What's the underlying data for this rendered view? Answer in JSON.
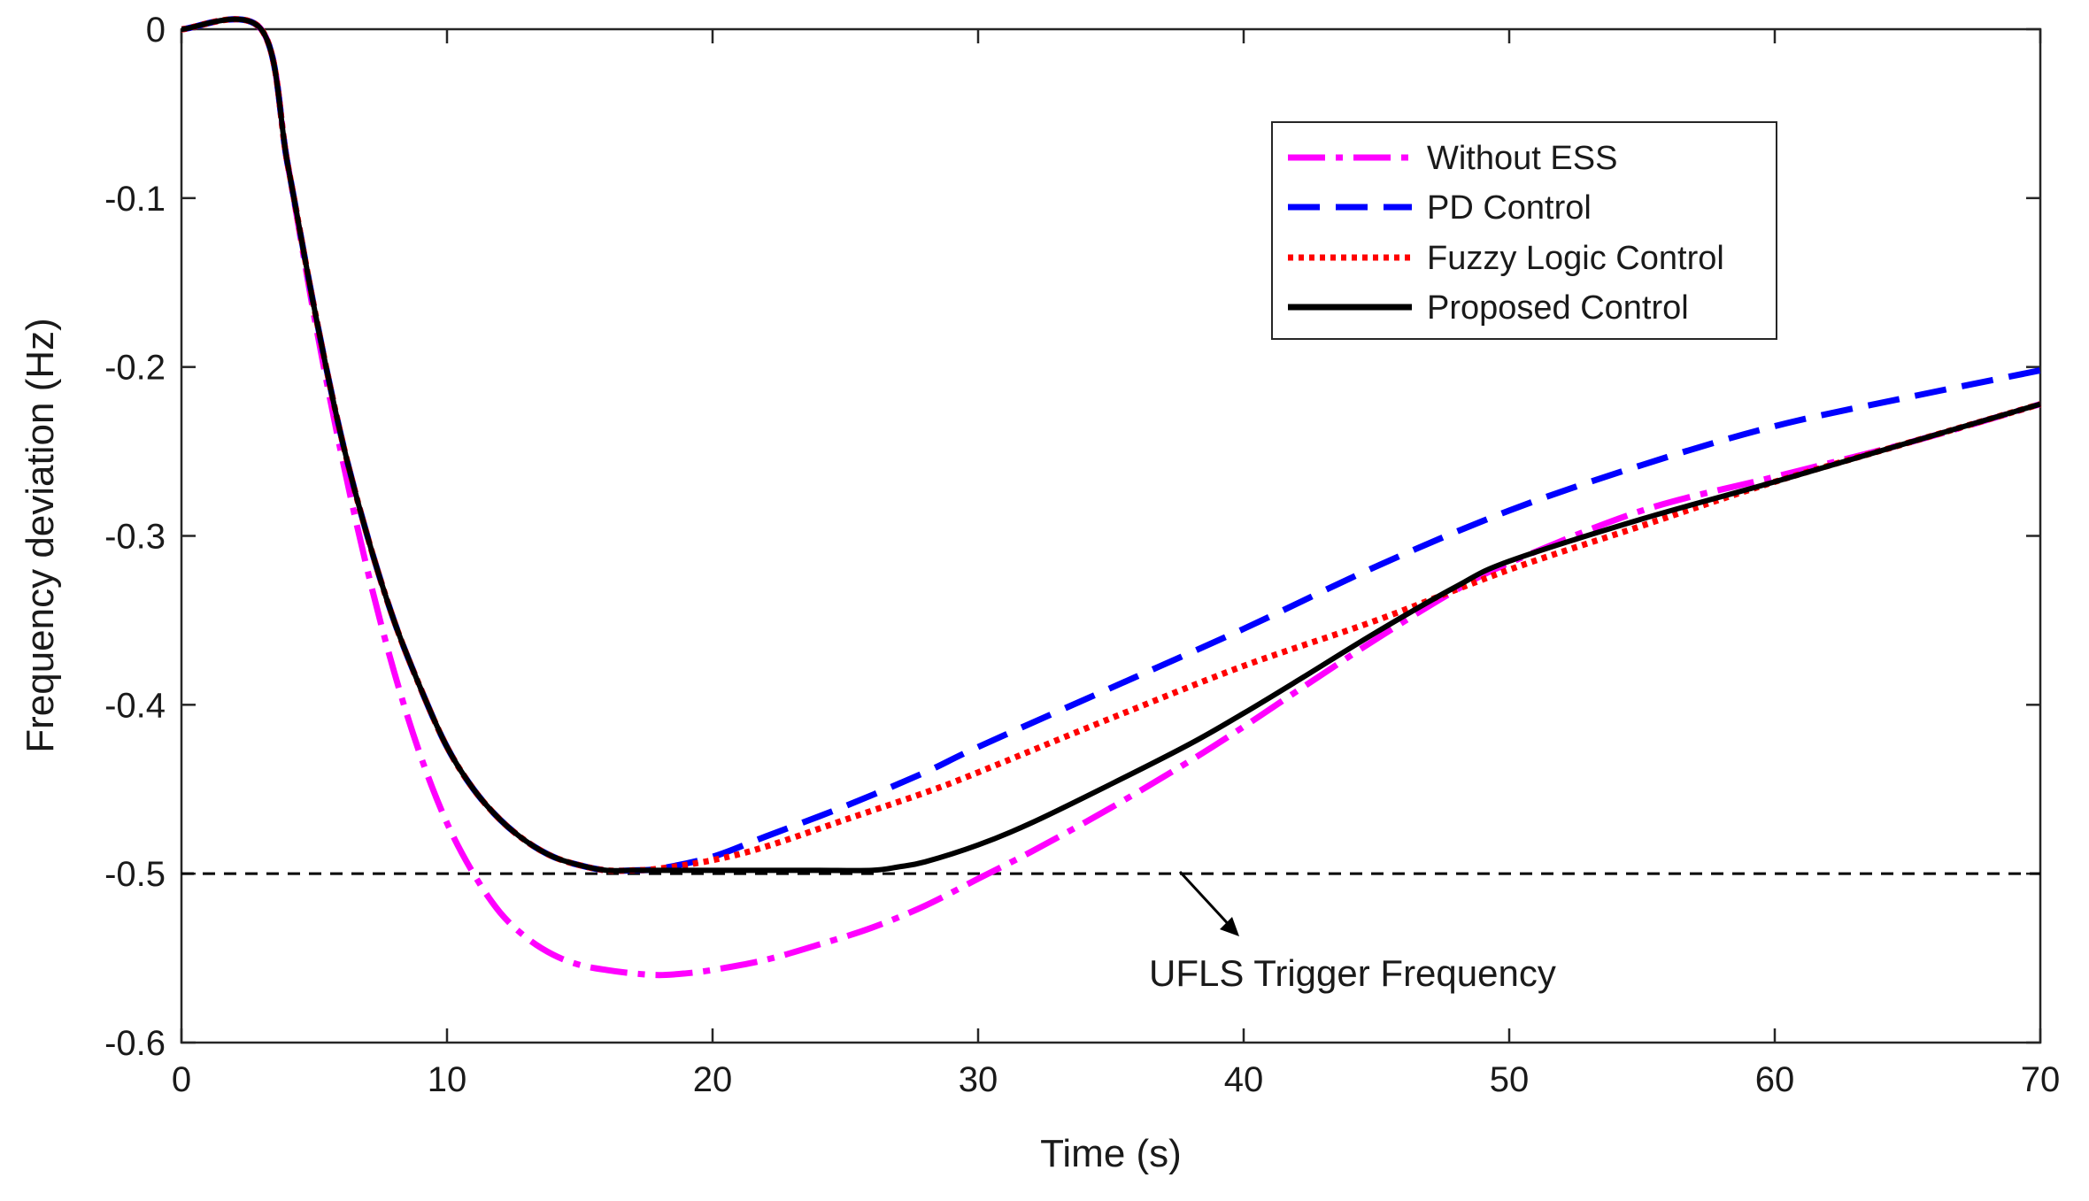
{
  "chart_data": {
    "type": "line",
    "title": "",
    "xlabel": "Time (s)",
    "ylabel": "Frequency deviation (Hz)",
    "xlim": [
      0,
      70
    ],
    "ylim": [
      -0.6,
      0
    ],
    "xticks": [
      0,
      10,
      20,
      30,
      40,
      50,
      60,
      70
    ],
    "yticks": [
      0,
      -0.1,
      -0.2,
      -0.3,
      -0.4,
      -0.5,
      -0.6
    ],
    "xtick_labels": [
      "0",
      "10",
      "20",
      "30",
      "40",
      "50",
      "60",
      "70"
    ],
    "ytick_labels": [
      "0",
      "-0.1",
      "-0.2",
      "-0.3",
      "-0.4",
      "-0.5",
      "-0.6"
    ],
    "grid": false,
    "legend_position": "top-right",
    "series": [
      {
        "name": "Without ESS",
        "color": "#ff00ff",
        "style": "dashdot",
        "x": [
          0,
          3,
          4,
          5,
          6,
          7,
          8,
          9,
          10,
          11,
          12,
          13,
          14,
          15,
          16,
          17,
          18,
          19,
          20,
          22,
          24,
          26,
          28,
          30,
          32,
          35,
          38,
          40,
          42,
          45,
          48,
          50,
          55,
          60,
          65,
          70
        ],
        "y": [
          0,
          0,
          -0.08,
          -0.17,
          -0.25,
          -0.32,
          -0.38,
          -0.43,
          -0.47,
          -0.5,
          -0.523,
          -0.538,
          -0.548,
          -0.554,
          -0.557,
          -0.559,
          -0.56,
          -0.559,
          -0.557,
          -0.551,
          -0.542,
          -0.532,
          -0.519,
          -0.503,
          -0.487,
          -0.461,
          -0.433,
          -0.413,
          -0.392,
          -0.361,
          -0.332,
          -0.316,
          -0.285,
          -0.265,
          -0.245,
          -0.222
        ]
      },
      {
        "name": "PD Control",
        "color": "#0000ff",
        "style": "dashed",
        "x": [
          0,
          3,
          4,
          5,
          6,
          7,
          8,
          9,
          10,
          11,
          12,
          13,
          14,
          15,
          16,
          17,
          18,
          20,
          22,
          25,
          28,
          30,
          35,
          40,
          45,
          50,
          55,
          60,
          65,
          70
        ],
        "y": [
          0,
          0,
          -0.08,
          -0.165,
          -0.24,
          -0.3,
          -0.35,
          -0.39,
          -0.425,
          -0.45,
          -0.468,
          -0.481,
          -0.49,
          -0.495,
          -0.498,
          -0.498,
          -0.497,
          -0.49,
          -0.478,
          -0.46,
          -0.44,
          -0.425,
          -0.39,
          -0.355,
          -0.318,
          -0.285,
          -0.258,
          -0.235,
          -0.218,
          -0.202
        ]
      },
      {
        "name": "Fuzzy Logic Control",
        "color": "#ff0000",
        "style": "dotted",
        "x": [
          0,
          3,
          4,
          5,
          6,
          7,
          8,
          9,
          10,
          11,
          12,
          13,
          14,
          15,
          16,
          17,
          18,
          20,
          22,
          25,
          28,
          30,
          35,
          40,
          45,
          50,
          55,
          60,
          65,
          70
        ],
        "y": [
          0,
          0,
          -0.08,
          -0.165,
          -0.24,
          -0.3,
          -0.35,
          -0.39,
          -0.425,
          -0.45,
          -0.468,
          -0.481,
          -0.49,
          -0.495,
          -0.498,
          -0.498,
          -0.497,
          -0.492,
          -0.484,
          -0.468,
          -0.452,
          -0.44,
          -0.408,
          -0.377,
          -0.35,
          -0.32,
          -0.294,
          -0.268,
          -0.245,
          -0.222
        ]
      },
      {
        "name": "Proposed Control",
        "color": "#000000",
        "style": "solid",
        "x": [
          0,
          3,
          4,
          5,
          6,
          7,
          8,
          9,
          10,
          11,
          12,
          13,
          14,
          15,
          16,
          17,
          18,
          20,
          22,
          24,
          26,
          27,
          28,
          30,
          32,
          35,
          38,
          40,
          42,
          45,
          48,
          50,
          55,
          60,
          65,
          70
        ],
        "y": [
          0,
          0,
          -0.08,
          -0.165,
          -0.24,
          -0.3,
          -0.35,
          -0.39,
          -0.425,
          -0.45,
          -0.468,
          -0.481,
          -0.49,
          -0.495,
          -0.498,
          -0.498,
          -0.498,
          -0.498,
          -0.498,
          -0.498,
          -0.498,
          -0.496,
          -0.493,
          -0.483,
          -0.47,
          -0.447,
          -0.423,
          -0.405,
          -0.386,
          -0.357,
          -0.33,
          -0.315,
          -0.29,
          -0.268,
          -0.245,
          -0.222
        ]
      }
    ],
    "reference_lines": [
      {
        "y": -0.5,
        "color": "#000000",
        "style": "dashed"
      }
    ],
    "annotations": [
      {
        "text": "UFLS Trigger Frequency",
        "x": 46,
        "y": -0.56,
        "arrow_from": [
          37.6,
          -0.502
        ],
        "arrow_to": [
          40,
          -0.54
        ]
      }
    ]
  }
}
